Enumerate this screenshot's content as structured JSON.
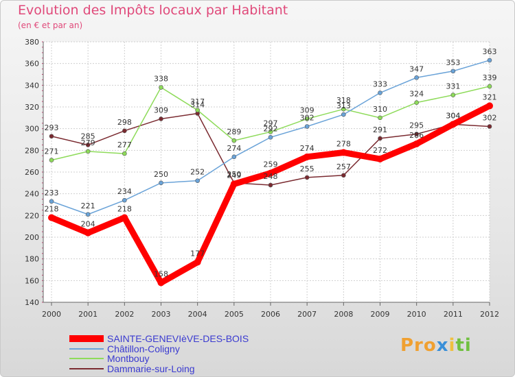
{
  "chart_data": {
    "type": "line",
    "title": "Evolution des Impôts locaux par Habitant",
    "subtitle": "(en € et par an)",
    "x": [
      "2000",
      "2001",
      "2002",
      "2003",
      "2004",
      "2005",
      "2006",
      "2007",
      "2008",
      "2009",
      "2010",
      "2011",
      "2012"
    ],
    "ylim": [
      140,
      380
    ],
    "yticks": [
      140,
      160,
      180,
      200,
      220,
      240,
      260,
      280,
      300,
      320,
      340,
      360,
      380
    ],
    "grid": true,
    "legend_position": "bottom-left",
    "series": [
      {
        "name": "SAINTE-GENEVIèVE-DES-BOIS",
        "color": "#ff0000",
        "values": [
          218,
          204,
          218,
          158,
          177,
          249,
          259,
          274,
          278,
          272,
          286,
          304,
          321
        ],
        "labels": [
          "218",
          "204",
          "218",
          "158",
          "177",
          "249",
          "259",
          "274",
          "278",
          "272",
          "286",
          "304",
          "321"
        ]
      },
      {
        "name": "Châtillon-Coligny",
        "color": "#6aa3d8",
        "values": [
          233,
          221,
          234,
          250,
          252,
          274,
          292,
          302,
          313,
          333,
          347,
          353,
          363
        ],
        "labels": [
          "233",
          "221",
          "234",
          "250",
          "252",
          "274",
          "292",
          "302",
          "313",
          "333",
          "347",
          "353",
          "363"
        ]
      },
      {
        "name": "Montbouy",
        "color": "#8edb5a",
        "values": [
          271,
          279,
          277,
          338,
          317,
          289,
          297,
          309,
          318,
          310,
          324,
          331,
          339
        ],
        "labels": [
          "271",
          "279",
          "277",
          "338",
          "317",
          "289",
          "297",
          "309",
          "318",
          "310",
          "324",
          "331",
          "339"
        ]
      },
      {
        "name": "Dammarie-sur-Loing",
        "color": "#7a2a30",
        "values": [
          293,
          285,
          298,
          309,
          314,
          250,
          248,
          255,
          257,
          291,
          295,
          304,
          302
        ],
        "labels": [
          "293",
          "285",
          "298",
          "309",
          "314",
          "250",
          "248",
          "255",
          "257",
          "291",
          "295",
          "304",
          "302"
        ]
      }
    ]
  },
  "logo": {
    "parts": [
      "Pro",
      "x",
      "i",
      "ti"
    ],
    "colors": [
      "#f0a030",
      "#3a8fd8",
      "#f0c040",
      "#70c040"
    ]
  }
}
